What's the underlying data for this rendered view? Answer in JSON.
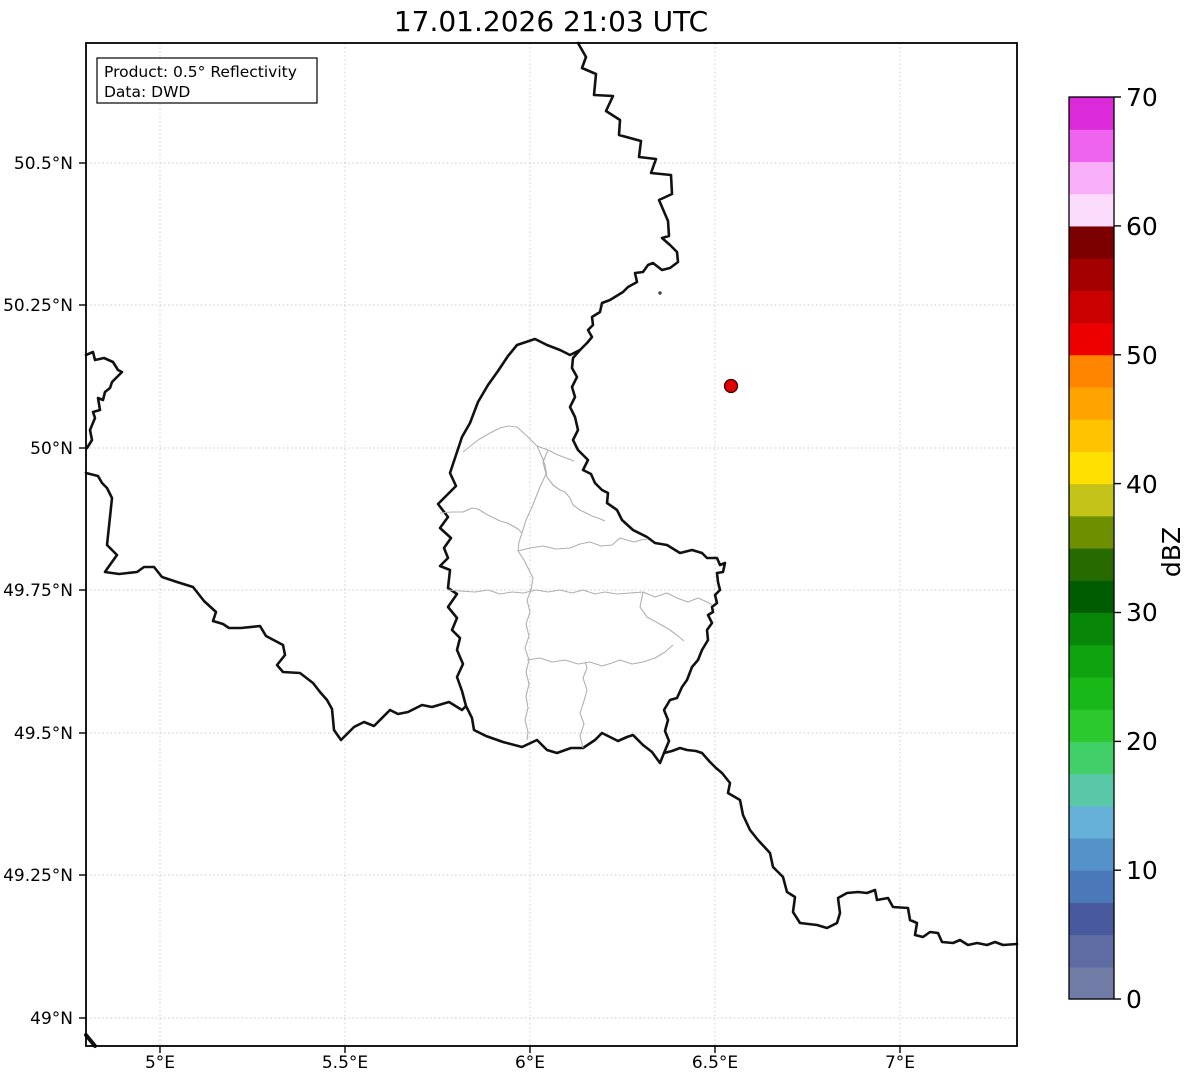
{
  "title": "17.01.2026 21:03 UTC",
  "annotation_box": {
    "line1": "Product: 0.5° Reflectivity",
    "line2": "Data: DWD"
  },
  "axes": {
    "x": {
      "ticks": [
        "5°E",
        "5.5°E",
        "6°E",
        "6.5°E",
        "7°E"
      ]
    },
    "y": {
      "ticks": [
        "50.5°N",
        "50.25°N",
        "50°N",
        "49.75°N",
        "49.5°N",
        "49.25°N",
        "49°N"
      ]
    }
  },
  "marker": {
    "fill": "#e10000",
    "edge": "#3a0000"
  },
  "colorbar": {
    "label": "dBZ",
    "ticks": [
      "70",
      "60",
      "50",
      "40",
      "30",
      "20",
      "10",
      "0"
    ],
    "min": 0,
    "max": 70,
    "step": 2.5,
    "segments": [
      {
        "from": 0.0,
        "to": 2.5,
        "color": "#707ba6"
      },
      {
        "from": 2.5,
        "to": 5.0,
        "color": "#5f6ba3"
      },
      {
        "from": 5.0,
        "to": 7.5,
        "color": "#49599e"
      },
      {
        "from": 7.5,
        "to": 10.0,
        "color": "#4a78b8"
      },
      {
        "from": 10.0,
        "to": 12.5,
        "color": "#5592c9"
      },
      {
        "from": 12.5,
        "to": 15.0,
        "color": "#66b1d8"
      },
      {
        "from": 15.0,
        "to": 17.5,
        "color": "#59c8a8"
      },
      {
        "from": 17.5,
        "to": 20.0,
        "color": "#41cf67"
      },
      {
        "from": 20.0,
        "to": 22.5,
        "color": "#2bc92d"
      },
      {
        "from": 22.5,
        "to": 25.0,
        "color": "#18b818"
      },
      {
        "from": 25.0,
        "to": 27.5,
        "color": "#0fa30f"
      },
      {
        "from": 27.5,
        "to": 30.0,
        "color": "#078607"
      },
      {
        "from": 30.0,
        "to": 32.5,
        "color": "#005c00"
      },
      {
        "from": 32.5,
        "to": 35.0,
        "color": "#276b00"
      },
      {
        "from": 35.0,
        "to": 37.5,
        "color": "#6e8f00"
      },
      {
        "from": 37.5,
        "to": 40.0,
        "color": "#c3c319"
      },
      {
        "from": 40.0,
        "to": 42.5,
        "color": "#ffe000"
      },
      {
        "from": 42.5,
        "to": 45.0,
        "color": "#ffc300"
      },
      {
        "from": 45.0,
        "to": 47.5,
        "color": "#ffa300"
      },
      {
        "from": 47.5,
        "to": 50.0,
        "color": "#ff8400"
      },
      {
        "from": 50.0,
        "to": 52.5,
        "color": "#ec0000"
      },
      {
        "from": 52.5,
        "to": 55.0,
        "color": "#ca0000"
      },
      {
        "from": 55.0,
        "to": 57.5,
        "color": "#a50000"
      },
      {
        "from": 57.5,
        "to": 60.0,
        "color": "#7c0000"
      },
      {
        "from": 60.0,
        "to": 62.5,
        "color": "#fcdcfc"
      },
      {
        "from": 62.5,
        "to": 65.0,
        "color": "#f8aef8"
      },
      {
        "from": 65.0,
        "to": 67.5,
        "color": "#ef64ef"
      },
      {
        "from": 67.5,
        "to": 70.0,
        "color": "#da2ada"
      }
    ]
  }
}
